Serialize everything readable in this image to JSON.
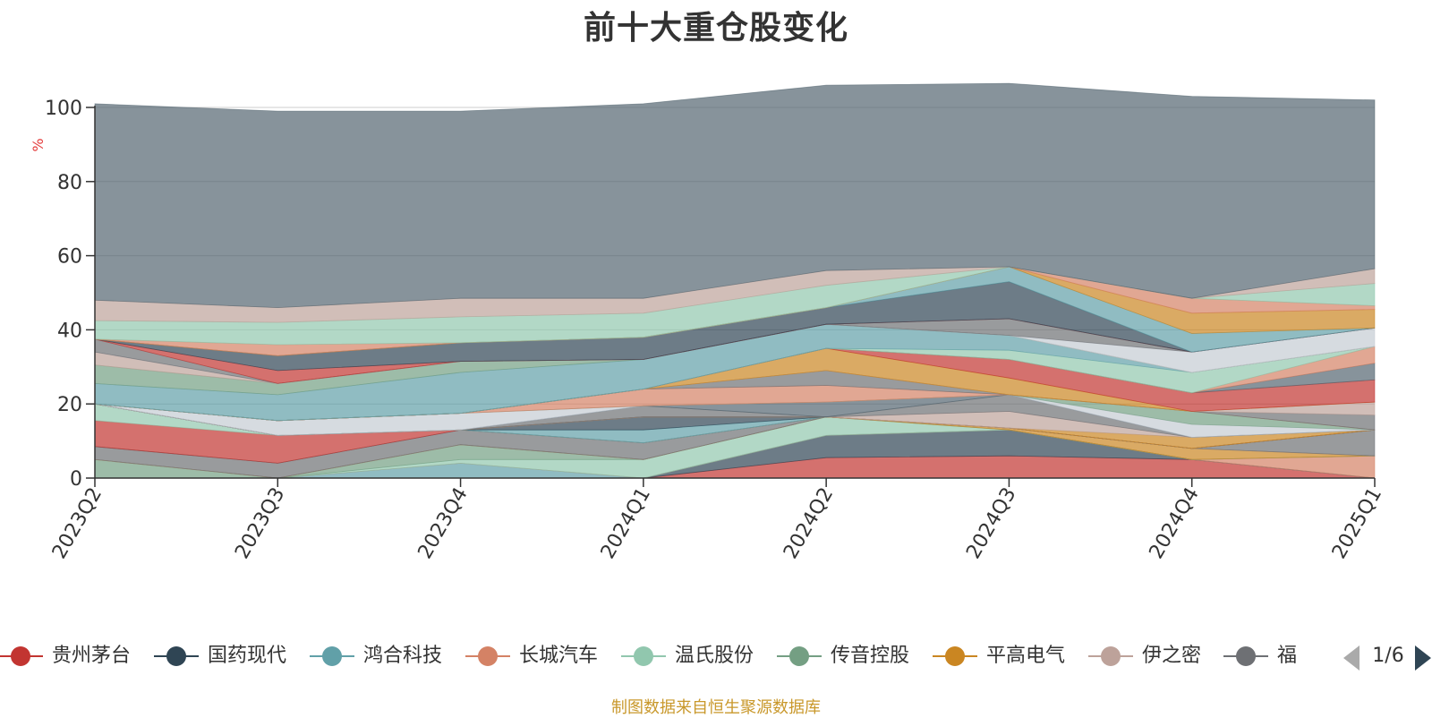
{
  "title": "前十大重仓股变化",
  "source_note": "制图数据来自恒生聚源数据库",
  "legend_page": "1/6",
  "chart_data": {
    "type": "area",
    "stacked": true,
    "title": "前十大重仓股变化",
    "ylabel": "%",
    "ylim": [
      0,
      100
    ],
    "yticks": [
      0,
      20,
      40,
      60,
      80,
      100
    ],
    "grid": true,
    "legend_position": "bottom",
    "categories": [
      "2023Q2",
      "2023Q3",
      "2023Q4",
      "2024Q1",
      "2024Q2",
      "2024Q3",
      "2024Q4",
      "2025Q1"
    ],
    "series": [
      {
        "name": "贵州茅台",
        "color": "#c23531",
        "values": [
          0,
          0,
          0,
          0,
          5.5,
          6,
          5,
          0
        ]
      },
      {
        "name": "国药现代",
        "color": "#2f4554",
        "values": [
          0,
          0,
          0,
          0,
          6,
          7,
          0,
          0
        ]
      },
      {
        "name": "鸿合科技",
        "color": "#61a0a8",
        "values": [
          0,
          0,
          4,
          0,
          0,
          0,
          0,
          0
        ]
      },
      {
        "name": "长城汽车",
        "color": "#d48265",
        "values": [
          0,
          0,
          0,
          0,
          0,
          0,
          0,
          6
        ]
      },
      {
        "name": "温氏股份",
        "color": "#91c7ae",
        "values": [
          0,
          0,
          1,
          5,
          5,
          0,
          0,
          0
        ]
      },
      {
        "name": "传音控股",
        "color": "#749f83",
        "values": [
          5,
          0,
          4,
          0,
          0,
          0,
          0,
          0
        ]
      },
      {
        "name": "平高电气",
        "color": "#ca8622",
        "values": [
          0,
          0,
          0,
          0,
          0,
          0.5,
          3,
          0
        ]
      },
      {
        "name": "伊之密",
        "color": "#bda29a",
        "values": [
          0,
          0,
          0,
          0,
          0,
          0,
          0,
          0
        ]
      },
      {
        "name": "福",
        "color": "#6e7074",
        "values": [
          3.5,
          4,
          4,
          4.5,
          0,
          0,
          0,
          7
        ]
      },
      {
        "name": "",
        "color": "#546570",
        "values": [
          0,
          0,
          0,
          0,
          0,
          0,
          0,
          0
        ]
      },
      {
        "name": "",
        "color": "#c23531",
        "values": [
          7,
          7.5,
          0,
          0,
          0,
          0,
          0,
          0
        ]
      },
      {
        "name": "",
        "color": "#91c7ae",
        "values": [
          4.5,
          0,
          0,
          0,
          0,
          0,
          0,
          0
        ]
      },
      {
        "name": "",
        "color": "#61a0a8",
        "values": [
          0,
          0,
          0,
          3.5,
          0,
          0,
          0,
          0
        ]
      },
      {
        "name": "",
        "color": "#2f4554",
        "values": [
          0,
          0,
          0,
          3.5,
          0,
          0,
          0,
          0
        ]
      },
      {
        "name": "",
        "color": "#d48265",
        "values": [
          0,
          0,
          0,
          0,
          0,
          0,
          0,
          0
        ]
      },
      {
        "name": "",
        "color": "#ca8622",
        "values": [
          0,
          0,
          0,
          0,
          0,
          0,
          3,
          0
        ]
      },
      {
        "name": "",
        "color": "#bda29a",
        "values": [
          0,
          0,
          0,
          0,
          0,
          4.5,
          0,
          0
        ]
      },
      {
        "name": "",
        "color": "#6e7074",
        "values": [
          0,
          0,
          0,
          3,
          0,
          4.5,
          0,
          0
        ]
      },
      {
        "name": "",
        "color": "#546570",
        "values": [
          0,
          0,
          0,
          0,
          4,
          0,
          0,
          0
        ]
      },
      {
        "name": "",
        "color": "#c4ccd3",
        "values": [
          0,
          4,
          4.5,
          0,
          0,
          0,
          3.5,
          0
        ]
      },
      {
        "name": "",
        "color": "#749f83",
        "values": [
          0,
          0,
          0,
          0,
          0,
          0,
          3.5,
          0
        ]
      },
      {
        "name": "",
        "color": "#d48265",
        "values": [
          0,
          0,
          0,
          4.5,
          4.5,
          0,
          0,
          0
        ]
      },
      {
        "name": "",
        "color": "#6e7074",
        "values": [
          0,
          0,
          0,
          0,
          4,
          0,
          0,
          4
        ]
      },
      {
        "name": "",
        "color": "#bda29a",
        "values": [
          0,
          0,
          0,
          0,
          0,
          0,
          0,
          3.5
        ]
      },
      {
        "name": "",
        "color": "#ca8622",
        "values": [
          0,
          0,
          0,
          0,
          6,
          4.5,
          0,
          0
        ]
      },
      {
        "name": "",
        "color": "#c23531",
        "values": [
          0,
          0,
          0,
          0,
          0,
          5,
          5,
          6
        ]
      },
      {
        "name": "",
        "color": "#546570",
        "values": [
          0,
          0,
          0,
          0,
          0,
          0,
          0,
          4.5
        ]
      },
      {
        "name": "",
        "color": "#d48265",
        "values": [
          0,
          0,
          0,
          0,
          0,
          0,
          0,
          4.5
        ]
      },
      {
        "name": "",
        "color": "#91c7ae",
        "values": [
          0,
          0,
          0,
          0,
          0,
          2.5,
          5.5,
          0
        ]
      },
      {
        "name": "",
        "color": "#61a0a8",
        "values": [
          5.5,
          7,
          11,
          8,
          6.5,
          4,
          0,
          0
        ]
      },
      {
        "name": "",
        "color": "#749f83",
        "values": [
          5,
          3,
          3,
          0,
          0,
          0,
          0,
          0
        ]
      },
      {
        "name": "",
        "color": "#bda29a",
        "values": [
          3.5,
          0,
          0,
          0,
          0,
          0,
          0,
          0
        ]
      },
      {
        "name": "",
        "color": "#c4ccd3",
        "values": [
          0,
          0,
          0,
          0,
          0,
          0,
          5.5,
          5
        ]
      },
      {
        "name": "",
        "color": "#6e7074",
        "values": [
          3.5,
          0,
          0,
          0,
          0,
          4.5,
          0,
          0
        ]
      },
      {
        "name": "",
        "color": "#c23531",
        "values": [
          0,
          3.5,
          0,
          0,
          0,
          0,
          0,
          0
        ]
      },
      {
        "name": "",
        "color": "#2f4554",
        "values": [
          0,
          4,
          5,
          6,
          4.5,
          10,
          0,
          0
        ]
      },
      {
        "name": "",
        "color": "#61a0a8",
        "values": [
          0,
          0,
          0,
          0,
          0,
          4,
          5,
          0
        ]
      },
      {
        "name": "",
        "color": "#ca8622",
        "values": [
          0,
          0,
          0,
          0,
          0,
          0,
          5.5,
          5
        ]
      },
      {
        "name": "",
        "color": "#d48265",
        "values": [
          0,
          3,
          0,
          0,
          0,
          0,
          4,
          1
        ]
      },
      {
        "name": "",
        "color": "#91c7ae",
        "values": [
          5,
          6,
          7,
          6.5,
          6,
          0,
          0,
          6
        ]
      },
      {
        "name": "",
        "color": "#bda29a",
        "values": [
          5.5,
          4,
          5,
          4,
          4,
          0,
          0,
          4
        ]
      },
      {
        "name": "",
        "color": "#546570",
        "values": [
          53,
          53,
          50.5,
          52.5,
          50,
          49.5,
          54.5,
          45.5
        ]
      }
    ]
  }
}
